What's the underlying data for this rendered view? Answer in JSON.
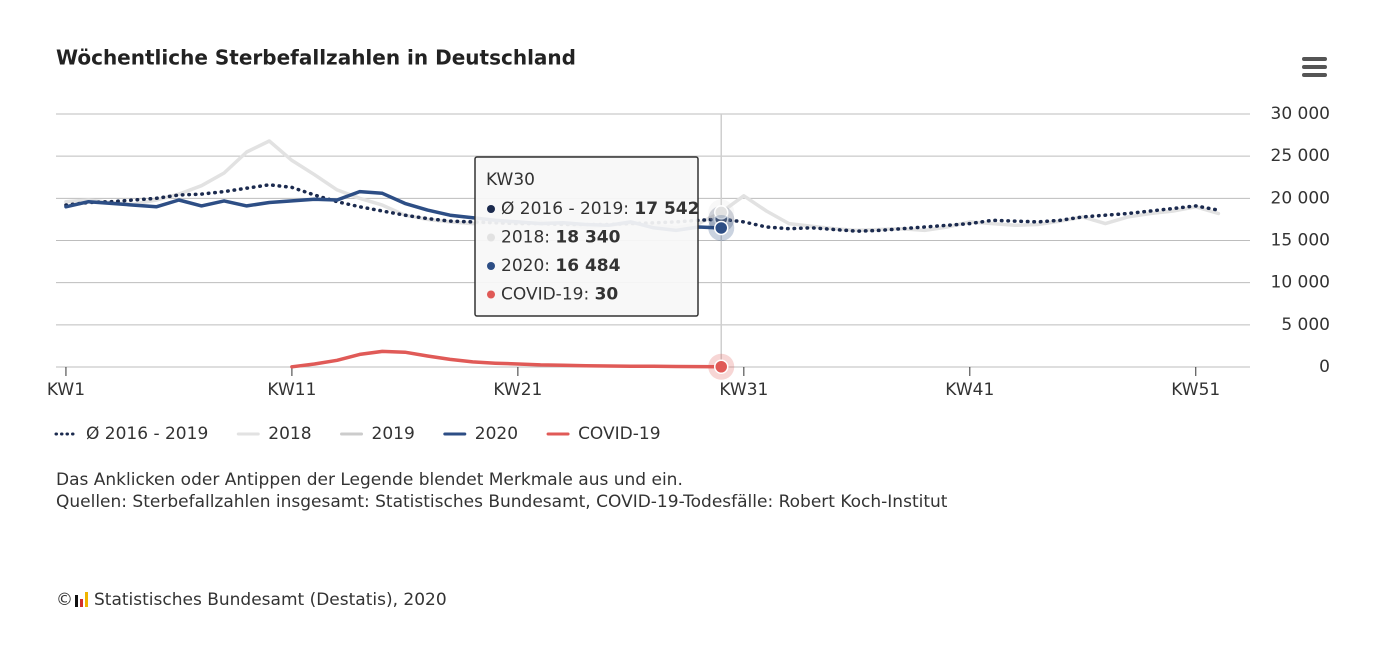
{
  "chart_data": {
    "type": "line",
    "title": "Wöchentliche Sterbefallzahlen in Deutschland",
    "x": [
      1,
      2,
      3,
      4,
      5,
      6,
      7,
      8,
      9,
      10,
      11,
      12,
      13,
      14,
      15,
      16,
      17,
      18,
      19,
      20,
      21,
      22,
      23,
      24,
      25,
      26,
      27,
      28,
      29,
      30,
      31,
      32,
      33,
      34,
      35,
      36,
      37,
      38,
      39,
      40,
      41,
      42,
      43,
      44,
      45,
      46,
      47,
      48,
      49,
      50,
      51,
      52
    ],
    "xlim": [
      0.56,
      53.4
    ],
    "xticks": [
      {
        "value": 1,
        "label": "KW1"
      },
      {
        "value": 11,
        "label": "KW11"
      },
      {
        "value": 21,
        "label": "KW21"
      },
      {
        "value": 31,
        "label": "KW31"
      },
      {
        "value": 41,
        "label": "KW41"
      },
      {
        "value": 51,
        "label": "KW51"
      }
    ],
    "ylim": [
      0,
      30000
    ],
    "yticks": [
      0,
      {
        "value": 5000,
        "label": "5 000"
      },
      {
        "value": 10000,
        "label": "10 000"
      },
      {
        "value": 15000,
        "label": "15 000"
      },
      {
        "value": 20000,
        "label": "20 000"
      },
      {
        "value": 25000,
        "label": "25 000"
      },
      {
        "value": 30000,
        "label": "30 000"
      }
    ],
    "grid": true,
    "series": [
      {
        "name": "Ø 2016 - 2019",
        "color": "#1b2a4e",
        "dashed": true,
        "values": [
          19200,
          19500,
          19600,
          19800,
          20000,
          20400,
          20500,
          20800,
          21200,
          21600,
          21300,
          20400,
          19600,
          19000,
          18500,
          18000,
          17600,
          17300,
          17200,
          17100,
          17000,
          17000,
          16900,
          16900,
          16900,
          17000,
          17100,
          17200,
          17400,
          17542,
          17200,
          16600,
          16400,
          16500,
          16300,
          16100,
          16200,
          16400,
          16600,
          16800,
          17000,
          17400,
          17300,
          17200,
          17400,
          17800,
          18000,
          18200,
          18500,
          18800,
          19100,
          18600
        ]
      },
      {
        "name": "2018",
        "color": "#e2e2e2",
        "values": [
          19600,
          19800,
          19500,
          19300,
          19800,
          20500,
          21500,
          23000,
          25500,
          26800,
          24500,
          22800,
          21000,
          20000,
          19200,
          18000,
          17500,
          17200,
          17000,
          17200,
          17000,
          17200,
          17000,
          16500,
          16800,
          17000,
          16800,
          16500,
          17000,
          18340,
          20300,
          18500,
          17000,
          16700,
          16400,
          16200,
          16300,
          16400,
          16200,
          16600,
          17200,
          17000,
          16800,
          16900,
          17300,
          17800,
          17000,
          17800,
          18200,
          18500,
          19000,
          18200
        ]
      },
      {
        "name": "2019",
        "color": "#cccccc",
        "visible": false
      },
      {
        "name": "2020",
        "color": "#2d4e85",
        "values": [
          19000,
          19600,
          19400,
          19200,
          19000,
          19800,
          19100,
          19700,
          19100,
          19500,
          19700,
          19900,
          19800,
          20800,
          20600,
          19400,
          18600,
          18000,
          17700,
          17400,
          17200,
          17000,
          17100,
          16900,
          16800,
          17200,
          16500,
          16200,
          16600,
          16484,
          null,
          null,
          null,
          null,
          null,
          null,
          null,
          null,
          null,
          null,
          null,
          null,
          null,
          null,
          null,
          null,
          null,
          null,
          null,
          null,
          null,
          null
        ]
      },
      {
        "name": "COVID-19",
        "color": "#e05a57",
        "values": [
          null,
          null,
          null,
          null,
          null,
          null,
          null,
          null,
          null,
          null,
          20,
          350,
          800,
          1500,
          1850,
          1750,
          1300,
          900,
          600,
          450,
          350,
          250,
          200,
          150,
          120,
          100,
          80,
          60,
          50,
          30,
          null,
          null,
          null,
          null,
          null,
          null,
          null,
          null,
          null,
          null,
          null,
          null,
          null,
          null,
          null,
          null,
          null,
          null,
          null,
          null,
          null,
          null
        ]
      }
    ],
    "tooltip": {
      "title": "KW30",
      "index": 29,
      "rows": [
        {
          "series": 0,
          "label": "17 542"
        },
        {
          "series": 1,
          "label": "18 340"
        },
        {
          "series": 3,
          "label": "16 484"
        },
        {
          "series": 4,
          "label": "30"
        }
      ]
    },
    "notes": [
      "Das Anklicken oder Antippen der Legende blendet Merkmale aus und ein.",
      "Quellen: Sterbefallzahlen insgesamt: Statistisches Bundesamt, COVID-19-Todesfälle: Robert Koch-Institut"
    ],
    "copyright": {
      "symbol": "©",
      "text": "Statistisches Bundesamt (Destatis), 2020"
    }
  }
}
